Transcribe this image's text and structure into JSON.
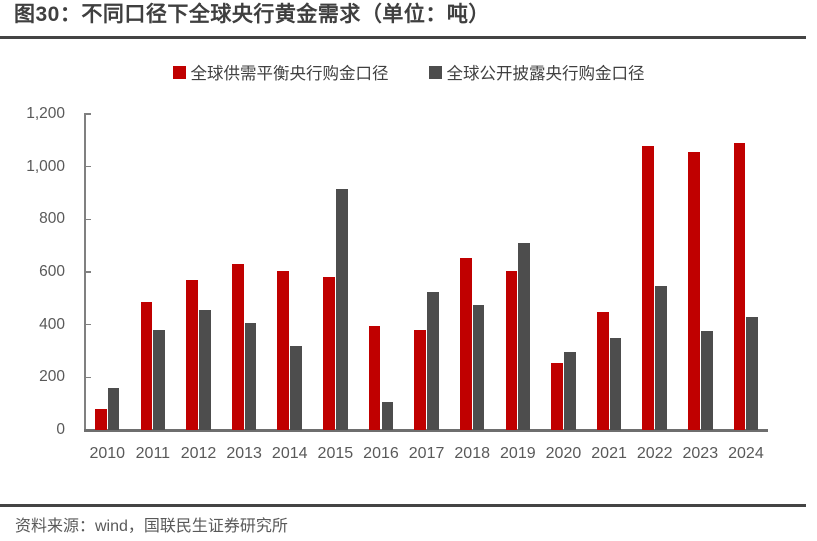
{
  "figure": {
    "title": "图30：不同口径下全球央行黄金需求（单位：吨）",
    "source": "资料来源：wind，国联民生证券研究所"
  },
  "legend": [
    {
      "label": "全球供需平衡央行购金口径",
      "color": "#C00000"
    },
    {
      "label": "全球公开披露央行购金口径",
      "color": "#4D4D4D"
    }
  ],
  "chart_data": {
    "type": "bar",
    "title": "不同口径下全球央行黄金需求",
    "unit": "吨",
    "categories": [
      "2010",
      "2011",
      "2012",
      "2013",
      "2014",
      "2015",
      "2016",
      "2017",
      "2018",
      "2019",
      "2020",
      "2021",
      "2022",
      "2023",
      "2024"
    ],
    "series": [
      {
        "name": "全球供需平衡央行购金口径",
        "key": "supply-balance",
        "color": "#C00000",
        "values": [
          80,
          485,
          570,
          630,
          605,
          580,
          395,
          380,
          655,
          605,
          255,
          450,
          1080,
          1055,
          1090
        ]
      },
      {
        "name": "全球公开披露央行购金口径",
        "key": "disclosed",
        "color": "#4D4D4D",
        "values": [
          160,
          380,
          455,
          405,
          320,
          915,
          105,
          525,
          475,
          710,
          295,
          350,
          545,
          375,
          430
        ]
      }
    ],
    "ylim": [
      0,
      1200
    ],
    "yticks": [
      0,
      200,
      400,
      600,
      800,
      1000,
      1200
    ],
    "ytick_labels": [
      "0",
      "200",
      "400",
      "600",
      "800",
      "1,000",
      "1,200"
    ],
    "grid": false,
    "legend_position": "top-center",
    "axis_color": "#808080",
    "tick_label_color": "#595959"
  }
}
